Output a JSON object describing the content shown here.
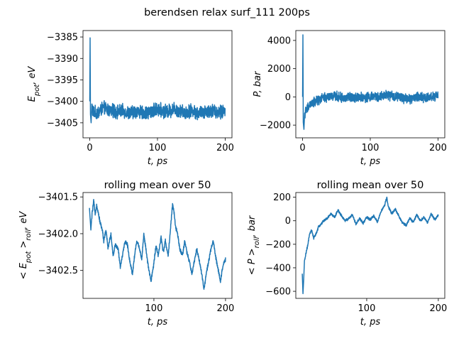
{
  "suptitle": "berendsen relax surf_111 200ps",
  "chart_data": [
    {
      "type": "line",
      "title": "",
      "xlabel": "t, ps",
      "ylabel": "E_pot, eV",
      "xlim": [
        -10,
        210
      ],
      "ylim": [
        -3408.5,
        -3383.5
      ],
      "xticks": [
        0,
        100,
        200
      ],
      "yticks": [
        -3405,
        -3400,
        -3395,
        -3390,
        -3385
      ],
      "series": [
        {
          "color": "#1f77b4",
          "x": [
            0,
            0.5,
            1,
            2,
            3,
            5,
            10,
            20,
            30,
            40,
            50,
            60,
            70,
            80,
            90,
            100,
            110,
            120,
            125,
            130,
            140,
            150,
            160,
            170,
            180,
            190,
            200
          ],
          "y": [
            -3400,
            -3385.2,
            -3403,
            -3405,
            -3401,
            -3402.5,
            -3402.8,
            -3401.5,
            -3402.2,
            -3402.4,
            -3402.3,
            -3402.8,
            -3402.2,
            -3402.9,
            -3402.4,
            -3401.8,
            -3402.3,
            -3402.2,
            -3401.6,
            -3402.0,
            -3402.6,
            -3402.1,
            -3402.8,
            -3402.3,
            -3402.2,
            -3402.5,
            -3402.4
          ],
          "noise": 2.3
        }
      ]
    },
    {
      "type": "line",
      "title": "",
      "xlabel": "t, ps",
      "ylabel": "P, bar",
      "xlim": [
        -10,
        210
      ],
      "ylim": [
        -2900,
        4700
      ],
      "xticks": [
        0,
        100,
        200
      ],
      "yticks": [
        -2000,
        0,
        2000,
        4000
      ],
      "series": [
        {
          "color": "#1f77b4",
          "x": [
            0,
            0.5,
            1,
            2,
            3,
            5,
            10,
            20,
            30,
            40,
            50,
            60,
            70,
            80,
            90,
            100,
            110,
            120,
            125,
            130,
            140,
            150,
            160,
            170,
            180,
            190,
            200
          ],
          "y": [
            0,
            4400,
            -1800,
            -2300,
            -1200,
            -1000,
            -600,
            -300,
            -100,
            0,
            50,
            -100,
            0,
            0,
            -50,
            0,
            0,
            50,
            150,
            50,
            0,
            -100,
            -150,
            0,
            -50,
            0,
            50
          ],
          "noise": 500
        }
      ]
    },
    {
      "type": "line",
      "title": "rolling mean over 50",
      "xlabel": "t, ps",
      "ylabel": "< E_pot >_roll, eV",
      "xlim": [
        1,
        209
      ],
      "ylim": [
        -3402.88,
        -3401.44
      ],
      "xticks": [
        100,
        200
      ],
      "yticks": [
        -3402.5,
        -3402.0,
        -3401.5
      ],
      "series": [
        {
          "color": "#1f77b4",
          "x": [
            10,
            12,
            14,
            16,
            18,
            20,
            22,
            25,
            28,
            30,
            33,
            36,
            40,
            43,
            46,
            50,
            53,
            56,
            60,
            63,
            66,
            70,
            73,
            76,
            80,
            83,
            86,
            90,
            93,
            96,
            100,
            103,
            106,
            110,
            113,
            116,
            120,
            123,
            126,
            128,
            130,
            133,
            136,
            140,
            143,
            146,
            150,
            153,
            156,
            160,
            163,
            166,
            170,
            173,
            176,
            180,
            183,
            186,
            190,
            193,
            196,
            200
          ],
          "y": [
            -3401.65,
            -3401.95,
            -3401.7,
            -3401.55,
            -3401.75,
            -3401.6,
            -3401.7,
            -3401.85,
            -3401.95,
            -3402.1,
            -3401.95,
            -3402.2,
            -3402.0,
            -3402.3,
            -3402.15,
            -3402.2,
            -3402.45,
            -3402.3,
            -3402.1,
            -3402.15,
            -3402.35,
            -3402.55,
            -3402.3,
            -3402.1,
            -3402.2,
            -3402.35,
            -3402.0,
            -3402.3,
            -3402.5,
            -3402.65,
            -3402.4,
            -3402.15,
            -3402.3,
            -3402.05,
            -3402.25,
            -3402.1,
            -3402.3,
            -3401.95,
            -3401.6,
            -3401.7,
            -3401.9,
            -3402.0,
            -3402.2,
            -3402.3,
            -3402.1,
            -3402.25,
            -3402.4,
            -3402.55,
            -3402.4,
            -3402.2,
            -3402.35,
            -3402.5,
            -3402.75,
            -3402.55,
            -3402.4,
            -3402.2,
            -3402.1,
            -3402.3,
            -3402.5,
            -3402.65,
            -3402.45,
            -3402.35
          ],
          "noise": 0.04
        }
      ]
    },
    {
      "type": "line",
      "title": "rolling mean over 50",
      "xlabel": "t, ps",
      "ylabel": "< P >_roll, bar",
      "xlim": [
        1,
        209
      ],
      "ylim": [
        -660,
        240
      ],
      "xticks": [
        100,
        200
      ],
      "yticks": [
        -600,
        -400,
        -200,
        0,
        200
      ],
      "series": [
        {
          "color": "#1f77b4",
          "x": [
            10,
            11,
            12,
            13,
            15,
            18,
            20,
            23,
            26,
            30,
            33,
            36,
            40,
            45,
            50,
            55,
            60,
            65,
            70,
            75,
            80,
            85,
            90,
            95,
            100,
            105,
            110,
            115,
            120,
            125,
            128,
            130,
            135,
            140,
            145,
            150,
            155,
            160,
            165,
            170,
            175,
            180,
            185,
            190,
            195,
            200
          ],
          "y": [
            -450,
            -620,
            -500,
            -350,
            -280,
            -200,
            -120,
            -80,
            -150,
            -100,
            -50,
            -30,
            0,
            20,
            60,
            30,
            90,
            40,
            0,
            20,
            50,
            -30,
            20,
            -20,
            30,
            10,
            40,
            -10,
            80,
            130,
            200,
            120,
            60,
            100,
            40,
            -20,
            -40,
            20,
            -10,
            50,
            0,
            30,
            -20,
            60,
            10,
            50
          ],
          "noise": 15
        }
      ]
    }
  ]
}
